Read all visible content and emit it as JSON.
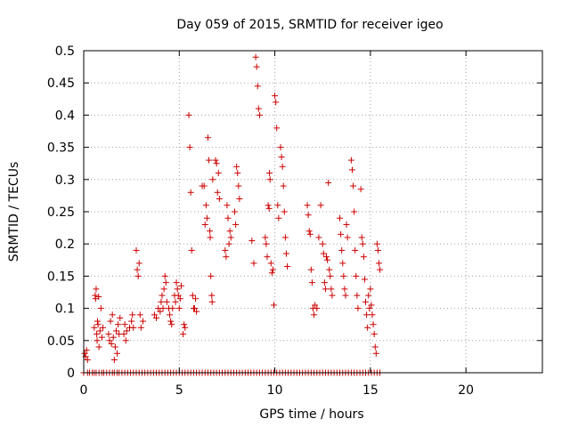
{
  "chart_data": {
    "type": "scatter",
    "title": "Day 059 of 2015, SRMTID for receiver igeo",
    "xlabel": "GPS time / hours",
    "ylabel": "SRMTID / TECUs",
    "xlim": [
      0,
      24
    ],
    "ylim": [
      0,
      0.5
    ],
    "x_ticks": [
      0,
      5,
      10,
      15,
      20
    ],
    "x_tick_labels": [
      "0",
      "5",
      "10",
      "15",
      "20"
    ],
    "y_ticks": [
      0,
      0.05,
      0.1,
      0.15,
      0.2,
      0.25,
      0.3,
      0.35,
      0.4,
      0.45,
      0.5
    ],
    "y_tick_labels": [
      "0",
      "0.05",
      "0.1",
      "0.15",
      "0.2",
      "0.25",
      "0.3",
      "0.35",
      "0.4",
      "0.45",
      "0.5"
    ],
    "grid": true,
    "marker": "+",
    "color": "#cc0000",
    "series": [
      {
        "name": "SRMTID",
        "points": [
          [
            0.05,
            0.03
          ],
          [
            0.1,
            0.025
          ],
          [
            0.15,
            0.035
          ],
          [
            0.2,
            0.02
          ],
          [
            0.55,
            0.07
          ],
          [
            0.6,
            0.12
          ],
          [
            0.62,
            0.115
          ],
          [
            0.65,
            0.13
          ],
          [
            0.68,
            0.06
          ],
          [
            0.7,
            0.05
          ],
          [
            0.72,
            0.08
          ],
          [
            0.75,
            0.075
          ],
          [
            0.78,
            0.118
          ],
          [
            0.8,
            0.04
          ],
          [
            0.85,
            0.065
          ],
          [
            0.9,
            0.1
          ],
          [
            0.95,
            0.055
          ],
          [
            1.0,
            0.07
          ],
          [
            1.3,
            0.06
          ],
          [
            1.35,
            0.05
          ],
          [
            1.4,
            0.08
          ],
          [
            1.45,
            0.045
          ],
          [
            1.5,
            0.09
          ],
          [
            1.55,
            0.055
          ],
          [
            1.6,
            0.02
          ],
          [
            1.65,
            0.04
          ],
          [
            1.7,
            0.065
          ],
          [
            1.75,
            0.03
          ],
          [
            1.8,
            0.075
          ],
          [
            1.85,
            0.06
          ],
          [
            1.9,
            0.085
          ],
          [
            2.1,
            0.06
          ],
          [
            2.15,
            0.075
          ],
          [
            2.2,
            0.05
          ],
          [
            2.25,
            0.065
          ],
          [
            2.4,
            0.07
          ],
          [
            2.5,
            0.08
          ],
          [
            2.55,
            0.09
          ],
          [
            2.6,
            0.07
          ],
          [
            2.75,
            0.19
          ],
          [
            2.8,
            0.16
          ],
          [
            2.85,
            0.15
          ],
          [
            2.9,
            0.17
          ],
          [
            2.95,
            0.09
          ],
          [
            3.0,
            0.07
          ],
          [
            3.1,
            0.08
          ],
          [
            3.7,
            0.09
          ],
          [
            3.8,
            0.085
          ],
          [
            3.9,
            0.1
          ],
          [
            4.0,
            0.095
          ],
          [
            4.05,
            0.11
          ],
          [
            4.1,
            0.12
          ],
          [
            4.15,
            0.1
          ],
          [
            4.2,
            0.13
          ],
          [
            4.25,
            0.15
          ],
          [
            4.3,
            0.14
          ],
          [
            4.35,
            0.11
          ],
          [
            4.45,
            0.1
          ],
          [
            4.5,
            0.09
          ],
          [
            4.55,
            0.08
          ],
          [
            4.6,
            0.075
          ],
          [
            4.65,
            0.1
          ],
          [
            4.75,
            0.12
          ],
          [
            4.8,
            0.11
          ],
          [
            4.85,
            0.14
          ],
          [
            4.9,
            0.13
          ],
          [
            4.95,
            0.12
          ],
          [
            5.0,
            0.1
          ],
          [
            5.05,
            0.115
          ],
          [
            5.1,
            0.135
          ],
          [
            5.2,
            0.06
          ],
          [
            5.25,
            0.075
          ],
          [
            5.3,
            0.07
          ],
          [
            5.5,
            0.4
          ],
          [
            5.55,
            0.35
          ],
          [
            5.6,
            0.28
          ],
          [
            5.65,
            0.19
          ],
          [
            5.7,
            0.12
          ],
          [
            5.75,
            0.1
          ],
          [
            5.8,
            0.1
          ],
          [
            5.85,
            0.115
          ],
          [
            5.9,
            0.095
          ],
          [
            6.2,
            0.29
          ],
          [
            6.3,
            0.29
          ],
          [
            6.35,
            0.23
          ],
          [
            6.4,
            0.26
          ],
          [
            6.45,
            0.24
          ],
          [
            6.5,
            0.365
          ],
          [
            6.55,
            0.33
          ],
          [
            6.6,
            0.22
          ],
          [
            6.62,
            0.21
          ],
          [
            6.65,
            0.15
          ],
          [
            6.7,
            0.12
          ],
          [
            6.72,
            0.11
          ],
          [
            6.75,
            0.3
          ],
          [
            6.9,
            0.33
          ],
          [
            6.95,
            0.325
          ],
          [
            7.0,
            0.28
          ],
          [
            7.05,
            0.31
          ],
          [
            7.1,
            0.27
          ],
          [
            7.4,
            0.19
          ],
          [
            7.45,
            0.18
          ],
          [
            7.5,
            0.26
          ],
          [
            7.55,
            0.24
          ],
          [
            7.6,
            0.2
          ],
          [
            7.65,
            0.22
          ],
          [
            7.7,
            0.21
          ],
          [
            7.9,
            0.25
          ],
          [
            7.95,
            0.23
          ],
          [
            8.0,
            0.32
          ],
          [
            8.05,
            0.31
          ],
          [
            8.1,
            0.29
          ],
          [
            8.15,
            0.27
          ],
          [
            8.8,
            0.205
          ],
          [
            8.9,
            0.17
          ],
          [
            9.0,
            0.49
          ],
          [
            9.05,
            0.475
          ],
          [
            9.1,
            0.445
          ],
          [
            9.15,
            0.41
          ],
          [
            9.2,
            0.4
          ],
          [
            9.5,
            0.21
          ],
          [
            9.55,
            0.2
          ],
          [
            9.6,
            0.18
          ],
          [
            9.65,
            0.26
          ],
          [
            9.7,
            0.255
          ],
          [
            9.72,
            0.31
          ],
          [
            9.75,
            0.3
          ],
          [
            9.8,
            0.17
          ],
          [
            9.85,
            0.155
          ],
          [
            9.9,
            0.16
          ],
          [
            9.95,
            0.105
          ],
          [
            10.0,
            0.43
          ],
          [
            10.05,
            0.42
          ],
          [
            10.1,
            0.38
          ],
          [
            10.15,
            0.26
          ],
          [
            10.2,
            0.24
          ],
          [
            10.3,
            0.35
          ],
          [
            10.35,
            0.335
          ],
          [
            10.4,
            0.32
          ],
          [
            10.45,
            0.29
          ],
          [
            10.5,
            0.25
          ],
          [
            10.55,
            0.21
          ],
          [
            10.6,
            0.185
          ],
          [
            10.65,
            0.165
          ],
          [
            11.7,
            0.26
          ],
          [
            11.75,
            0.245
          ],
          [
            11.8,
            0.22
          ],
          [
            11.85,
            0.215
          ],
          [
            11.9,
            0.16
          ],
          [
            11.95,
            0.14
          ],
          [
            12.0,
            0.1
          ],
          [
            12.05,
            0.09
          ],
          [
            12.1,
            0.105
          ],
          [
            12.2,
            0.1
          ],
          [
            12.3,
            0.21
          ],
          [
            12.4,
            0.26
          ],
          [
            12.5,
            0.2
          ],
          [
            12.55,
            0.185
          ],
          [
            12.6,
            0.14
          ],
          [
            12.65,
            0.13
          ],
          [
            12.7,
            0.18
          ],
          [
            12.75,
            0.175
          ],
          [
            12.8,
            0.295
          ],
          [
            12.85,
            0.16
          ],
          [
            12.9,
            0.15
          ],
          [
            12.95,
            0.13
          ],
          [
            13.0,
            0.12
          ],
          [
            13.4,
            0.24
          ],
          [
            13.45,
            0.215
          ],
          [
            13.5,
            0.19
          ],
          [
            13.55,
            0.17
          ],
          [
            13.6,
            0.15
          ],
          [
            13.65,
            0.13
          ],
          [
            13.7,
            0.12
          ],
          [
            13.75,
            0.23
          ],
          [
            13.8,
            0.21
          ],
          [
            14.0,
            0.33
          ],
          [
            14.05,
            0.315
          ],
          [
            14.1,
            0.29
          ],
          [
            14.15,
            0.25
          ],
          [
            14.2,
            0.19
          ],
          [
            14.25,
            0.15
          ],
          [
            14.3,
            0.12
          ],
          [
            14.35,
            0.1
          ],
          [
            14.5,
            0.285
          ],
          [
            14.55,
            0.21
          ],
          [
            14.6,
            0.2
          ],
          [
            14.65,
            0.18
          ],
          [
            14.7,
            0.145
          ],
          [
            14.75,
            0.11
          ],
          [
            14.8,
            0.09
          ],
          [
            14.85,
            0.07
          ],
          [
            14.9,
            0.12
          ],
          [
            14.95,
            0.1
          ],
          [
            15.0,
            0.13
          ],
          [
            15.05,
            0.105
          ],
          [
            15.1,
            0.09
          ],
          [
            15.15,
            0.075
          ],
          [
            15.2,
            0.06
          ],
          [
            15.25,
            0.04
          ],
          [
            15.3,
            0.03
          ],
          [
            15.35,
            0.2
          ],
          [
            15.4,
            0.19
          ],
          [
            15.45,
            0.17
          ],
          [
            15.5,
            0.16
          ]
        ],
        "baseline_zero_points": [
          0.0,
          0.2,
          0.3,
          0.45,
          0.55,
          0.65,
          0.8,
          0.95,
          1.05,
          1.2,
          1.35,
          1.5,
          1.6,
          1.75,
          1.85,
          2.0,
          2.15,
          2.3,
          2.45,
          2.6,
          2.75,
          2.9,
          3.05,
          3.2,
          3.35,
          3.5,
          3.65,
          3.8,
          3.95,
          4.1,
          4.25,
          4.4,
          4.55,
          4.7,
          4.85,
          5.0,
          5.15,
          5.3,
          5.45,
          5.6,
          5.75,
          5.9,
          6.05,
          6.2,
          6.35,
          6.5,
          6.65,
          6.8,
          6.95,
          7.1,
          7.25,
          7.4,
          7.55,
          7.7,
          7.85,
          8.0,
          8.15,
          8.3,
          8.45,
          8.6,
          8.75,
          8.9,
          9.05,
          9.2,
          9.35,
          9.5,
          9.65,
          9.8,
          9.95,
          10.1,
          10.25,
          10.4,
          10.55,
          10.7,
          10.85,
          11.0,
          11.15,
          11.3,
          11.45,
          11.6,
          11.75,
          11.9,
          12.05,
          12.2,
          12.35,
          12.5,
          12.65,
          12.8,
          12.95,
          13.1,
          13.25,
          13.4,
          13.55,
          13.7,
          13.85,
          14.0,
          14.15,
          14.3,
          14.45,
          14.6,
          14.75,
          14.9,
          15.05,
          15.2,
          15.35,
          15.5
        ]
      }
    ]
  }
}
